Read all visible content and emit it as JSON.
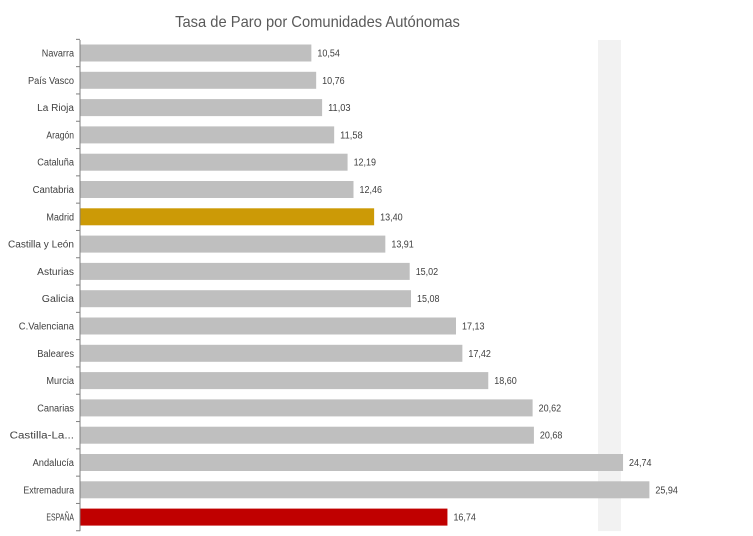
{
  "chart_data": {
    "type": "bar",
    "orientation": "horizontal",
    "title": "Tasa de Paro por Comunidades Autónomas",
    "xlabel": "",
    "ylabel": "",
    "xlim": [
      0,
      28
    ],
    "grid": false,
    "legend": "none",
    "categories": [
      "Navarra",
      "País Vasco",
      "La Rioja",
      "Aragón",
      "Cataluña",
      "Cantabria",
      "Madrid",
      "Castilla y León",
      "Asturias",
      "Galicia",
      "C.Valenciana",
      "Baleares",
      "Murcia",
      "Canarias",
      "Castilla-La...",
      "Andalucía",
      "Extremadura",
      "ESPAÑA"
    ],
    "values": [
      10.54,
      10.76,
      11.03,
      11.58,
      12.19,
      12.46,
      13.4,
      13.91,
      15.02,
      15.08,
      17.13,
      17.42,
      18.6,
      20.62,
      20.68,
      24.74,
      25.94,
      16.74
    ],
    "value_labels": [
      "10,54",
      "10,76",
      "11,03",
      "11,58",
      "12,19",
      "12,46",
      "13,40",
      "13,91",
      "15,02",
      "15,08",
      "17,13",
      "17,42",
      "18,60",
      "20,62",
      "20,68",
      "24,74",
      "25,94",
      "16,74"
    ],
    "colors": {
      "default": "#bfbfbf",
      "highlight_madrid": "#cc9a06",
      "highlight_espana": "#c00000",
      "axis": "#7f7f7f",
      "vertical_band": "#f2f2f2"
    },
    "bar_colors": [
      "#bfbfbf",
      "#bfbfbf",
      "#bfbfbf",
      "#bfbfbf",
      "#bfbfbf",
      "#bfbfbf",
      "#cc9a06",
      "#bfbfbf",
      "#bfbfbf",
      "#bfbfbf",
      "#bfbfbf",
      "#bfbfbf",
      "#bfbfbf",
      "#bfbfbf",
      "#bfbfbf",
      "#bfbfbf",
      "#bfbfbf",
      "#c00000"
    ]
  }
}
